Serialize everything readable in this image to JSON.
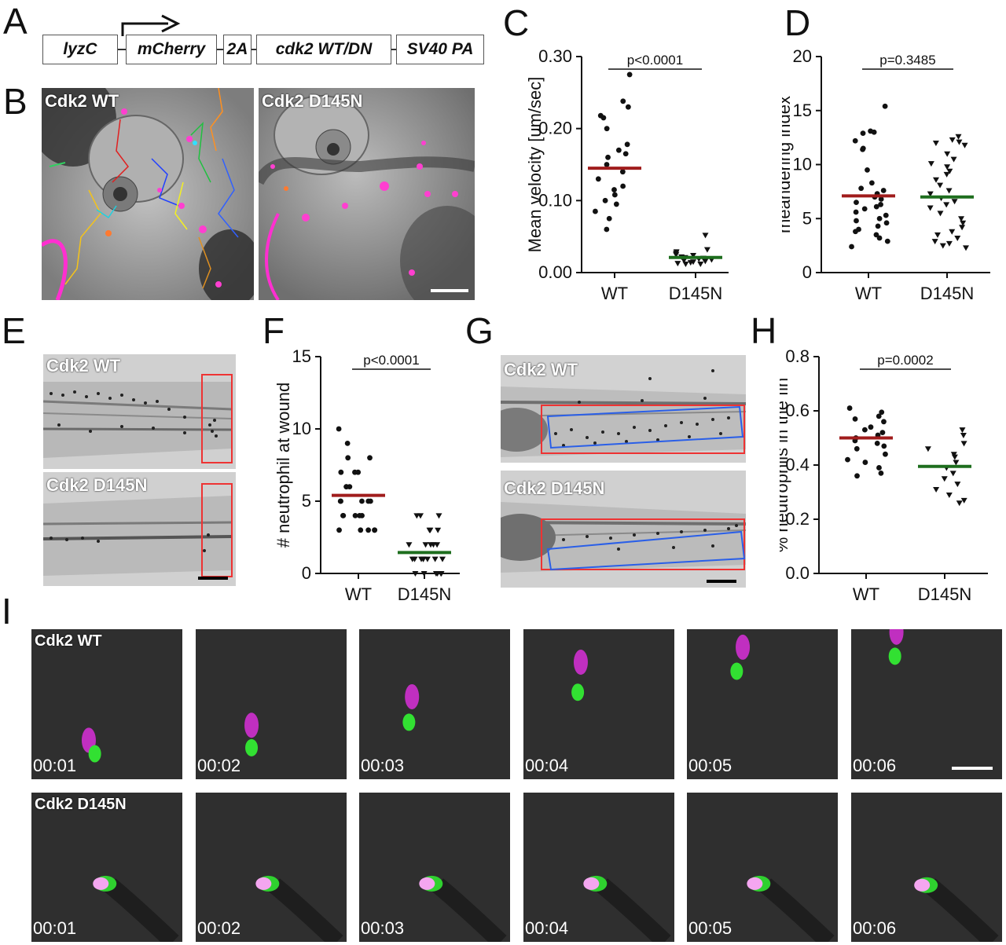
{
  "panels": {
    "A": "A",
    "B": "B",
    "C": "C",
    "D": "D",
    "E": "E",
    "F": "F",
    "G": "G",
    "H": "H",
    "I": "I"
  },
  "construct": {
    "segments": [
      {
        "label": "lyzC",
        "color": "#f3ee2a"
      },
      {
        "label": "mCherry",
        "color": "#e6187f"
      },
      {
        "label": "2A",
        "color": "#8d8d8d"
      },
      {
        "label": "cdk2 WT/DN",
        "color": "#5fbf3f"
      },
      {
        "label": "SV40 PA",
        "color": "#ec2227"
      }
    ],
    "connector": "-"
  },
  "images": {
    "b_wt": "Cdk2 WT",
    "b_dn": "Cdk2 D145N",
    "e_wt": "Cdk2 WT",
    "e_dn": "Cdk2 D145N",
    "g_wt": "Cdk2 WT",
    "g_dn": "Cdk2 D145N",
    "i_wt": "Cdk2 WT",
    "i_dn": "Cdk2 D145N"
  },
  "timestamps": [
    "00:01",
    "00:02",
    "00:03",
    "00:04",
    "00:05",
    "00:06"
  ],
  "chart_data": [
    {
      "id": "C",
      "type": "scatter",
      "ylabel": "Mean velocity [um/sec]",
      "categories": [
        "WT",
        "D145N"
      ],
      "ylim": [
        0,
        0.3
      ],
      "yticks": [
        "0.00",
        "0.10",
        "0.20",
        "0.30"
      ],
      "pvalue": "p<0.0001",
      "means": [
        0.145,
        0.021
      ],
      "mean_colors": [
        "#a01c1c",
        "#1e6e1e"
      ],
      "markers": [
        "circle",
        "triangle"
      ],
      "series": [
        {
          "name": "WT",
          "values": [
            0.275,
            0.238,
            0.23,
            0.218,
            0.215,
            0.2,
            0.178,
            0.17,
            0.165,
            0.16,
            0.15,
            0.14,
            0.13,
            0.12,
            0.115,
            0.108,
            0.1,
            0.095,
            0.085,
            0.075,
            0.06
          ]
        },
        {
          "name": "D145N",
          "values": [
            0.052,
            0.032,
            0.029,
            0.027,
            0.025,
            0.024,
            0.022,
            0.021,
            0.02,
            0.019,
            0.018,
            0.017,
            0.016,
            0.015,
            0.014,
            0.013,
            0.012,
            0.012
          ]
        }
      ]
    },
    {
      "id": "D",
      "type": "scatter",
      "ylabel": "meandering index",
      "categories": [
        "WT",
        "D145N"
      ],
      "ylim": [
        0,
        20
      ],
      "yticks": [
        "0",
        "5",
        "10",
        "15",
        "20"
      ],
      "pvalue": "p=0.3485",
      "means": [
        7.1,
        7.0
      ],
      "mean_colors": [
        "#a01c1c",
        "#1e6e1e"
      ],
      "markers": [
        "circle",
        "triangle"
      ],
      "series": [
        {
          "name": "WT",
          "values": [
            15.4,
            13.1,
            13.0,
            12.9,
            12.2,
            11.5,
            11.4,
            9.5,
            8.3,
            7.8,
            7.6,
            7.3,
            7.0,
            6.8,
            6.5,
            6.3,
            6.1,
            5.9,
            5.6,
            5.3,
            5.0,
            4.8,
            4.6,
            4.3,
            4.0,
            3.8,
            3.5,
            3.2,
            2.9,
            2.4
          ]
        },
        {
          "name": "D145N",
          "values": [
            12.6,
            12.3,
            12.1,
            12.0,
            11.8,
            11.0,
            10.5,
            10.1,
            9.8,
            9.4,
            9.1,
            8.6,
            8.1,
            7.6,
            7.3,
            6.9,
            6.6,
            6.3,
            6.0,
            5.5,
            5.0,
            4.6,
            4.2,
            3.8,
            3.5,
            3.2,
            2.9,
            2.7,
            2.5,
            2.3
          ]
        }
      ]
    },
    {
      "id": "F",
      "type": "scatter",
      "ylabel": "# neutrophil at wound",
      "categories": [
        "WT",
        "D145N"
      ],
      "ylim": [
        0,
        15
      ],
      "yticks": [
        "0",
        "5",
        "10",
        "15"
      ],
      "pvalue": "p<0.0001",
      "means": [
        5.4,
        1.45
      ],
      "mean_colors": [
        "#a01c1c",
        "#1e6e1e"
      ],
      "markers": [
        "circle",
        "triangle"
      ],
      "series": [
        {
          "name": "WT",
          "values": [
            10,
            9,
            8,
            8,
            7,
            7,
            7,
            6,
            6,
            6,
            5,
            5,
            5,
            5,
            5,
            4,
            4,
            4,
            4,
            4,
            3,
            3,
            3,
            3,
            3
          ]
        },
        {
          "name": "D145N",
          "values": [
            4,
            4,
            4,
            3,
            3,
            3,
            2,
            2,
            2,
            2,
            2,
            1,
            1,
            1,
            1,
            1,
            1,
            1,
            1,
            0,
            0,
            0,
            0,
            0,
            0
          ]
        }
      ]
    },
    {
      "id": "H",
      "type": "scatter",
      "ylabel": "% neutrophils in the fin",
      "categories": [
        "WT",
        "D145N"
      ],
      "ylim": [
        0,
        0.8
      ],
      "yticks": [
        "0.0",
        "0.2",
        "0.4",
        "0.6",
        "0.8"
      ],
      "pvalue": "p=0.0002",
      "means": [
        0.5,
        0.395
      ],
      "mean_colors": [
        "#a01c1c",
        "#1e6e1e"
      ],
      "markers": [
        "circle",
        "triangle"
      ],
      "series": [
        {
          "name": "WT",
          "values": [
            0.61,
            0.595,
            0.58,
            0.57,
            0.56,
            0.54,
            0.53,
            0.52,
            0.51,
            0.5,
            0.49,
            0.48,
            0.47,
            0.46,
            0.44,
            0.42,
            0.41,
            0.39,
            0.37,
            0.36
          ]
        },
        {
          "name": "D145N",
          "values": [
            0.53,
            0.51,
            0.48,
            0.46,
            0.44,
            0.43,
            0.41,
            0.39,
            0.37,
            0.35,
            0.33,
            0.31,
            0.29,
            0.27,
            0.26
          ]
        }
      ]
    }
  ]
}
